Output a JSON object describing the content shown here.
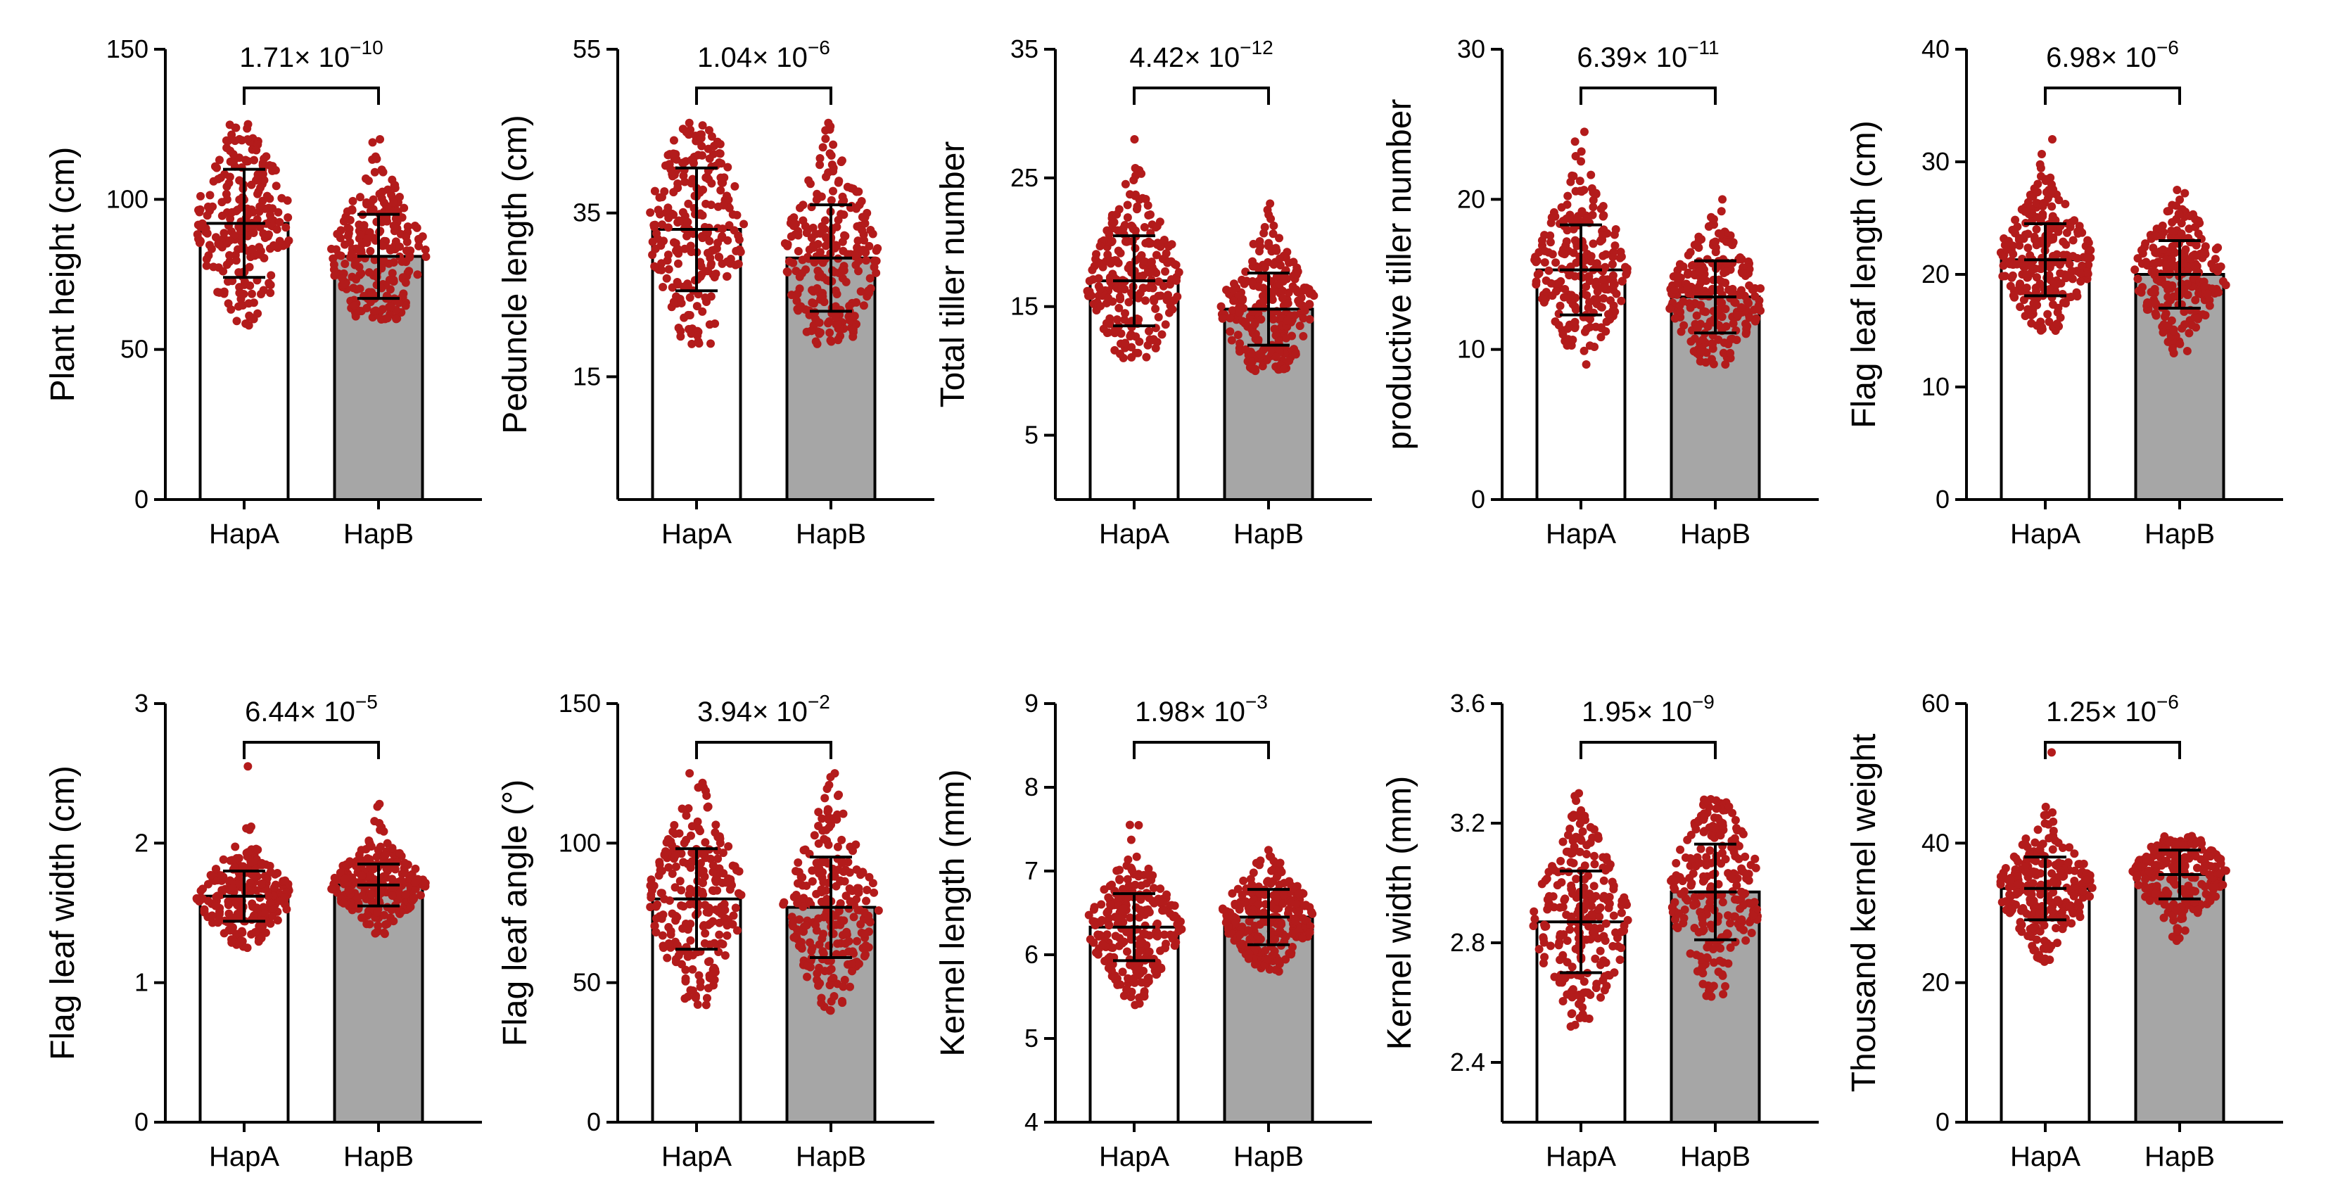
{
  "colors": {
    "bar_hapA": "#ffffff",
    "bar_hapB": "#a6a6a6",
    "dots": "#b31b1b",
    "axis": "#000000"
  },
  "chart_data": [
    {
      "type": "bar",
      "title": "",
      "ylabel": "Plant  height  (cm)",
      "categories": [
        "HapA",
        "HapB"
      ],
      "ylim": [
        0,
        150
      ],
      "yticks": [
        "0",
        "50",
        "100",
        "150"
      ],
      "means": [
        92,
        81
      ],
      "sd": [
        18,
        14
      ],
      "dot_range": [
        [
          58,
          125
        ],
        [
          60,
          120
        ]
      ],
      "p_value": {
        "base": "1.71× 10",
        "exp": "−10"
      }
    },
    {
      "type": "bar",
      "title": "",
      "ylabel": "Peduncle length (cm)",
      "categories": [
        "HapA",
        "HapB"
      ],
      "ylim": [
        0,
        55
      ],
      "yticks": [
        "15",
        "35",
        "55"
      ],
      "means": [
        33,
        29.5
      ],
      "sd": [
        7.5,
        6.5
      ],
      "dot_range": [
        [
          19,
          46
        ],
        [
          19,
          46
        ]
      ],
      "p_value": {
        "base": "1.04× 10",
        "exp": "−6"
      }
    },
    {
      "type": "bar",
      "title": "",
      "ylabel": "Total tiller number",
      "categories": [
        "HapA",
        "HapB"
      ],
      "ylim": [
        0,
        35
      ],
      "yticks": [
        "5",
        "15",
        "25",
        "35"
      ],
      "means": [
        17,
        14.8
      ],
      "sd": [
        3.5,
        2.8
      ],
      "dot_range": [
        [
          11,
          28
        ],
        [
          10,
          23
        ]
      ],
      "p_value": {
        "base": "4.42× 10",
        "exp": "−12"
      }
    },
    {
      "type": "bar",
      "title": "",
      "ylabel": "productive tiller number",
      "categories": [
        "HapA",
        "HapB"
      ],
      "ylim": [
        0,
        30
      ],
      "yticks": [
        "0",
        "10",
        "20",
        "30"
      ],
      "means": [
        15.3,
        13.5
      ],
      "sd": [
        3.0,
        2.4
      ],
      "dot_range": [
        [
          9,
          24.5
        ],
        [
          9,
          20
        ]
      ],
      "p_value": {
        "base": "6.39× 10",
        "exp": "−11"
      }
    },
    {
      "type": "bar",
      "title": "",
      "ylabel": "Flag leaf length   (cm)",
      "categories": [
        "HapA",
        "HapB"
      ],
      "ylim": [
        0,
        40
      ],
      "yticks": [
        "0",
        "10",
        "20",
        "30",
        "40"
      ],
      "means": [
        21.3,
        20
      ],
      "sd": [
        3.2,
        3.0
      ],
      "dot_range": [
        [
          15,
          32
        ],
        [
          13,
          27.5
        ]
      ],
      "p_value": {
        "base": "6.98× 10",
        "exp": "−6"
      }
    },
    {
      "type": "bar",
      "title": "",
      "ylabel": "Flag leaf width    (cm)",
      "categories": [
        "HapA",
        "HapB"
      ],
      "ylim": [
        0,
        3
      ],
      "yticks": [
        "0",
        "1",
        "2",
        "3"
      ],
      "means": [
        1.62,
        1.7
      ],
      "sd": [
        0.18,
        0.15
      ],
      "dot_range": [
        [
          1.25,
          2.55
        ],
        [
          1.35,
          2.28
        ]
      ],
      "p_value": {
        "base": "6.44× 10",
        "exp": "−5"
      }
    },
    {
      "type": "bar",
      "title": "",
      "ylabel": "Flag leaf angle   (°)",
      "categories": [
        "HapA",
        "HapB"
      ],
      "ylim": [
        0,
        150
      ],
      "yticks": [
        "0",
        "50",
        "100",
        "150"
      ],
      "means": [
        80,
        77
      ],
      "sd": [
        18,
        18
      ],
      "dot_range": [
        [
          42,
          125
        ],
        [
          40,
          125
        ]
      ],
      "p_value": {
        "base": "3.94× 10",
        "exp": "−2"
      }
    },
    {
      "type": "bar",
      "title": "",
      "ylabel": "Kernel length (mm)",
      "categories": [
        "HapA",
        "HapB"
      ],
      "ylim": [
        4,
        9
      ],
      "yticks": [
        "4",
        "5",
        "6",
        "7",
        "8",
        "9"
      ],
      "means": [
        6.33,
        6.45
      ],
      "sd": [
        0.4,
        0.33
      ],
      "dot_range": [
        [
          5.4,
          7.55
        ],
        [
          5.8,
          7.25
        ]
      ],
      "p_value": {
        "base": "1.98× 10",
        "exp": "−3"
      }
    },
    {
      "type": "bar",
      "title": "",
      "ylabel": "Kernel width (mm)",
      "categories": [
        "HapA",
        "HapB"
      ],
      "ylim": [
        2.2,
        3.6
      ],
      "yticks": [
        "2.4",
        "2.8",
        "3.2",
        "3.6"
      ],
      "means": [
        2.87,
        2.97
      ],
      "sd": [
        0.17,
        0.16
      ],
      "dot_range": [
        [
          2.52,
          3.3
        ],
        [
          2.62,
          3.28
        ]
      ],
      "p_value": {
        "base": "1.95× 10",
        "exp": "−9"
      }
    },
    {
      "type": "bar",
      "title": "",
      "ylabel": "Thousand kernel weight",
      "categories": [
        "HapA",
        "HapB"
      ],
      "ylim": [
        0,
        60
      ],
      "yticks": [
        "0",
        "20",
        "40",
        "60"
      ],
      "means": [
        33.5,
        35.5
      ],
      "sd": [
        4.5,
        3.5
      ],
      "dot_range": [
        [
          23,
          53
        ],
        [
          26,
          41
        ]
      ],
      "p_value": {
        "base": "1.25× 10",
        "exp": "−6"
      }
    }
  ]
}
